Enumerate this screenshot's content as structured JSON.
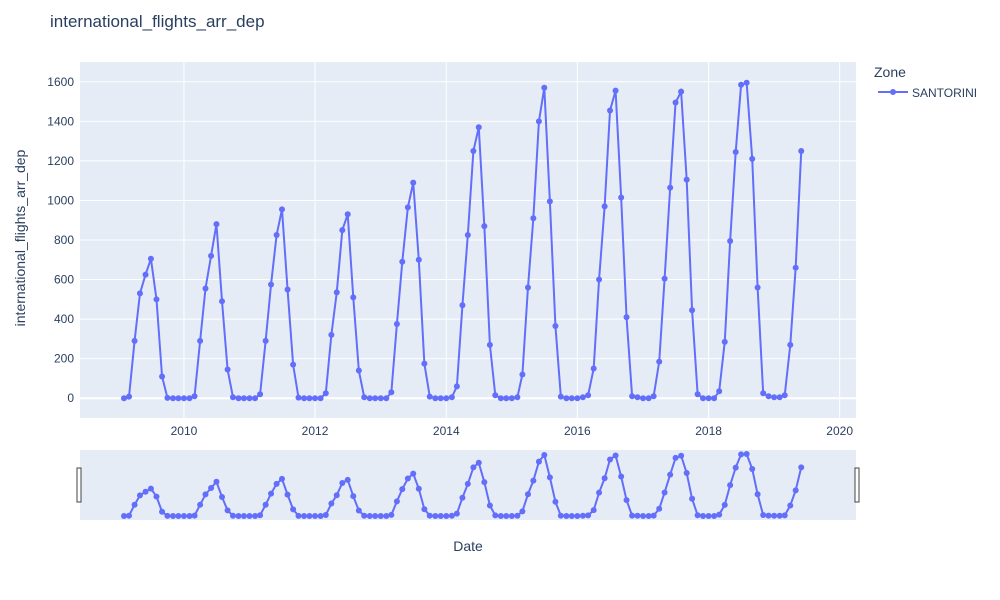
{
  "chart_data": {
    "type": "line",
    "mode": "lines+markers",
    "title": "international_flights_arr_dep",
    "xlabel": "Date",
    "ylabel": "international_flights_arr_dep",
    "legend": {
      "title": "Zone",
      "placement": "top-right"
    },
    "grid": true,
    "xlim": [
      "2008-06-01",
      "2020-04-01"
    ],
    "ylim": [
      -100,
      1700
    ],
    "xticks": [
      "2010",
      "2012",
      "2014",
      "2016",
      "2018",
      "2020"
    ],
    "yticks": [
      0,
      200,
      400,
      600,
      800,
      1000,
      1200,
      1400,
      1600
    ],
    "series": [
      {
        "name": "SANTORINI",
        "color": "#636efa",
        "x": [
          "2009-02",
          "2009-03",
          "2009-04",
          "2009-05",
          "2009-06",
          "2009-07",
          "2009-08",
          "2009-09",
          "2009-10",
          "2009-11",
          "2009-12",
          "2010-01",
          "2010-02",
          "2010-03",
          "2010-04",
          "2010-05",
          "2010-06",
          "2010-07",
          "2010-08",
          "2010-09",
          "2010-10",
          "2010-11",
          "2010-12",
          "2011-01",
          "2011-02",
          "2011-03",
          "2011-04",
          "2011-05",
          "2011-06",
          "2011-07",
          "2011-08",
          "2011-09",
          "2011-10",
          "2011-11",
          "2011-12",
          "2012-01",
          "2012-02",
          "2012-03",
          "2012-04",
          "2012-05",
          "2012-06",
          "2012-07",
          "2012-08",
          "2012-09",
          "2012-10",
          "2012-11",
          "2012-12",
          "2013-01",
          "2013-02",
          "2013-03",
          "2013-04",
          "2013-05",
          "2013-06",
          "2013-07",
          "2013-08",
          "2013-09",
          "2013-10",
          "2013-11",
          "2013-12",
          "2014-01",
          "2014-02",
          "2014-03",
          "2014-04",
          "2014-05",
          "2014-06",
          "2014-07",
          "2014-08",
          "2014-09",
          "2014-10",
          "2014-11",
          "2014-12",
          "2015-01",
          "2015-02",
          "2015-03",
          "2015-04",
          "2015-05",
          "2015-06",
          "2015-07",
          "2015-08",
          "2015-09",
          "2015-10",
          "2015-11",
          "2015-12",
          "2016-01",
          "2016-02",
          "2016-03",
          "2016-04",
          "2016-05",
          "2016-06",
          "2016-07",
          "2016-08",
          "2016-09",
          "2016-10",
          "2016-11",
          "2016-12",
          "2017-01",
          "2017-02",
          "2017-03",
          "2017-04",
          "2017-05",
          "2017-06",
          "2017-07",
          "2017-08",
          "2017-09",
          "2017-10",
          "2017-11",
          "2017-12",
          "2018-01",
          "2018-02",
          "2018-03",
          "2018-04",
          "2018-05",
          "2018-06",
          "2018-07",
          "2018-08",
          "2018-09",
          "2018-10",
          "2018-11",
          "2018-12",
          "2019-01",
          "2019-02",
          "2019-03",
          "2019-04",
          "2019-05",
          "2019-06"
        ],
        "values": [
          0,
          8,
          290,
          530,
          625,
          705,
          500,
          110,
          2,
          0,
          0,
          0,
          0,
          10,
          290,
          555,
          720,
          880,
          490,
          145,
          5,
          0,
          0,
          0,
          0,
          20,
          290,
          575,
          825,
          955,
          550,
          170,
          3,
          0,
          0,
          0,
          0,
          25,
          320,
          535,
          850,
          930,
          510,
          140,
          5,
          0,
          0,
          0,
          0,
          30,
          375,
          690,
          965,
          1090,
          700,
          175,
          8,
          0,
          0,
          0,
          5,
          60,
          470,
          825,
          1250,
          1370,
          870,
          270,
          15,
          0,
          0,
          0,
          5,
          120,
          560,
          910,
          1400,
          1570,
          995,
          365,
          8,
          0,
          0,
          0,
          5,
          15,
          150,
          600,
          970,
          1455,
          1555,
          1015,
          410,
          10,
          5,
          0,
          0,
          10,
          185,
          605,
          1065,
          1495,
          1550,
          1105,
          445,
          20,
          0,
          0,
          0,
          35,
          285,
          795,
          1245,
          1585,
          1595,
          1210,
          560,
          25,
          10,
          5,
          5,
          15,
          270,
          660,
          1250
        ]
      }
    ],
    "rangeslider": true
  }
}
